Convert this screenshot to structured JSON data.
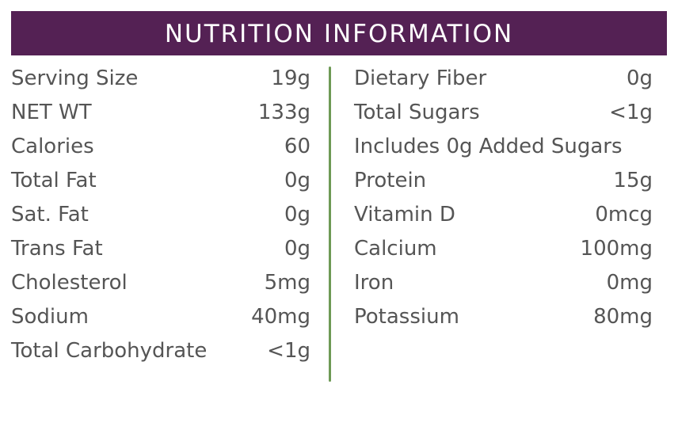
{
  "header": {
    "title": "NUTRITION INFORMATION"
  },
  "colors": {
    "header_bg": "#542154",
    "divider": "#6e9a55",
    "text": "#555555"
  },
  "left_column": [
    {
      "label": "Serving Size",
      "value": "19g"
    },
    {
      "label": "NET WT",
      "value": "133g"
    },
    {
      "label": "Calories",
      "value": "60"
    },
    {
      "label": "Total Fat",
      "value": "0g"
    },
    {
      "label": "Sat. Fat",
      "value": "0g"
    },
    {
      "label": "Trans Fat",
      "value": "0g"
    },
    {
      "label": "Cholesterol",
      "value": "5mg"
    },
    {
      "label": "Sodium",
      "value": "40mg"
    },
    {
      "label": "Total Carbohydrate",
      "value": "<1g"
    }
  ],
  "right_column": [
    {
      "label": "Dietary Fiber",
      "value": "0g"
    },
    {
      "label": "Total Sugars",
      "value": "<1g"
    },
    {
      "label": "Includes 0g Added Sugars",
      "value": ""
    },
    {
      "label": "Protein",
      "value": "15g"
    },
    {
      "label": "Vitamin D",
      "value": "0mcg"
    },
    {
      "label": "Calcium",
      "value": "100mg"
    },
    {
      "label": "Iron",
      "value": "0mg"
    },
    {
      "label": "Potassium",
      "value": "80mg"
    }
  ]
}
